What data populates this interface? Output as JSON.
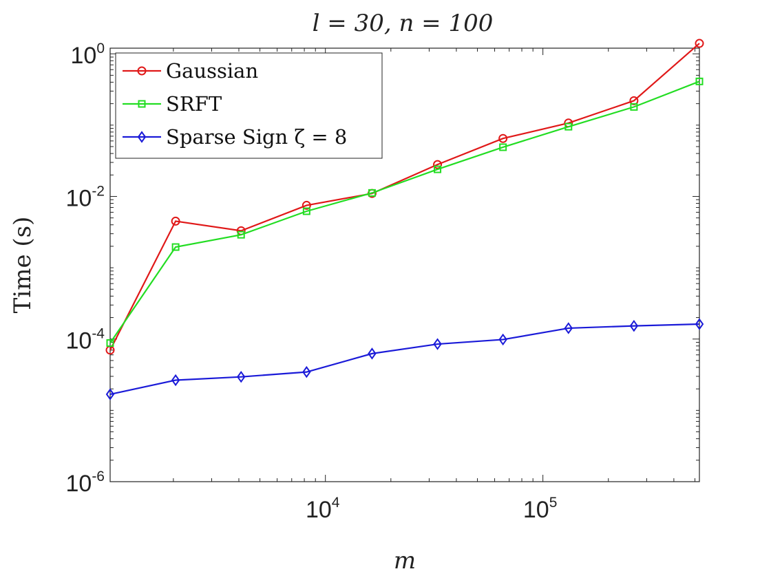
{
  "chart_data": {
    "type": "line",
    "title": "l = 30, n = 100",
    "xlabel": "m",
    "ylabel": "Time (s)",
    "xscale": "log",
    "yscale": "log",
    "xlim": [
      1024,
      524288
    ],
    "ylim": [
      1e-06,
      1.2
    ],
    "xticks": [
      {
        "value": 10000,
        "base": "10",
        "exp": "4"
      },
      {
        "value": 100000,
        "base": "10",
        "exp": "5"
      }
    ],
    "yticks": [
      {
        "value": 1,
        "base": "10",
        "exp": "0"
      },
      {
        "value": 0.01,
        "base": "10",
        "exp": "-2"
      },
      {
        "value": 0.0001,
        "base": "10",
        "exp": "-4"
      },
      {
        "value": 1e-06,
        "base": "10",
        "exp": "-6"
      }
    ],
    "grid": false,
    "legend_position": "top-left",
    "x": [
      1024,
      2048,
      4096,
      8192,
      16384,
      32768,
      65536,
      131072,
      262144,
      524288
    ],
    "series": [
      {
        "name": "Gaussian",
        "color": "#e01818",
        "marker": "circle",
        "values": [
          7e-05,
          0.0045,
          0.0033,
          0.0075,
          0.011,
          0.028,
          0.065,
          0.107,
          0.22,
          1.4
        ]
      },
      {
        "name": "SRFT",
        "color": "#22dd22",
        "marker": "square",
        "values": [
          8.8e-05,
          0.00195,
          0.0029,
          0.0062,
          0.0112,
          0.024,
          0.049,
          0.095,
          0.18,
          0.41
        ]
      },
      {
        "name": "Sparse Sign ζ = 8",
        "color": "#1a1ad8",
        "marker": "diamond",
        "values": [
          1.68e-05,
          2.65e-05,
          2.95e-05,
          3.45e-05,
          6.25e-05,
          8.5e-05,
          9.85e-05,
          0.000142,
          0.000153,
          0.000162
        ]
      }
    ]
  }
}
